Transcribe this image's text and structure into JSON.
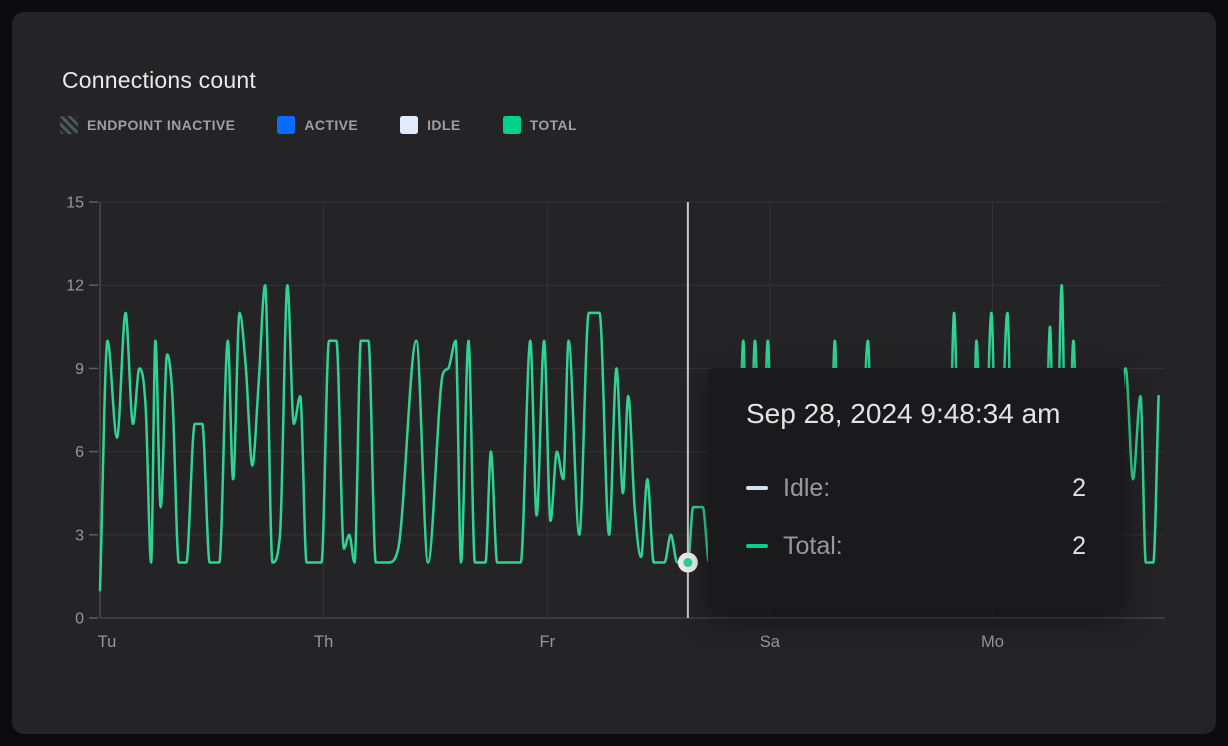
{
  "card": {
    "title": "Connections count"
  },
  "legend": {
    "items": [
      {
        "label": "ENDPOINT INACTIVE",
        "swatch": "hatch",
        "hatch_colors": [
          "#4f5c56",
          "#24292b"
        ]
      },
      {
        "label": "ACTIVE",
        "swatch": "#0a6cff"
      },
      {
        "label": "IDLE",
        "swatch": "#e0ebfb"
      },
      {
        "label": "TOTAL",
        "swatch": "#00d389"
      }
    ]
  },
  "tooltip": {
    "title": "Sep 28, 2024 9:48:34 am",
    "rows": [
      {
        "label": "Idle:",
        "value": "2",
        "color": "#cfe0f6"
      },
      {
        "label": "Total:",
        "value": "2",
        "color": "#00d389"
      }
    ]
  },
  "colors": {
    "page_bg": "#0b0b0d",
    "card_bg": "#242427",
    "grid": "#343438",
    "y_axis": "#4a4a4e",
    "x_axis": "#424246",
    "tick": "#5e5e62",
    "tick_label": "#98989b",
    "line": "#2fd492",
    "cursor_line": "#c9c9cb",
    "marker_ring": "#ededef",
    "marker_dot": "#2fd492",
    "tooltip_bg": "#1a1a1c"
  },
  "chart_data": {
    "type": "line",
    "title": "Connections count",
    "xlabel": "",
    "ylabel": "",
    "ylim": [
      0,
      15
    ],
    "yticks": [
      0,
      3,
      6,
      9,
      12,
      15
    ],
    "xticklabels": [
      "Tu",
      "Th",
      "Fr",
      "Sa",
      "Mo"
    ],
    "xtick_pct": [
      0,
      21.0,
      42.0,
      62.9,
      83.8
    ],
    "grid": true,
    "legend_position": "top",
    "series": [
      {
        "name": "Total",
        "color": "#2fd492",
        "points_pct_value": [
          [
            0,
            1
          ],
          [
            0.7,
            10
          ],
          [
            1.6,
            6.5
          ],
          [
            2.4,
            11
          ],
          [
            3.1,
            7
          ],
          [
            3.7,
            9
          ],
          [
            4.3,
            7.5
          ],
          [
            4.8,
            2
          ],
          [
            5.2,
            10
          ],
          [
            5.7,
            4
          ],
          [
            6.3,
            9.5
          ],
          [
            6.8,
            8
          ],
          [
            7.4,
            2
          ],
          [
            8.1,
            2
          ],
          [
            8.9,
            7
          ],
          [
            9.6,
            7
          ],
          [
            10.3,
            2
          ],
          [
            11.2,
            2
          ],
          [
            12,
            10
          ],
          [
            12.5,
            5
          ],
          [
            13.1,
            11
          ],
          [
            13.7,
            9
          ],
          [
            14.3,
            5.5
          ],
          [
            14.9,
            8.5
          ],
          [
            15.5,
            12
          ],
          [
            16.2,
            2
          ],
          [
            16.9,
            3
          ],
          [
            17.6,
            12
          ],
          [
            18.2,
            7
          ],
          [
            18.8,
            8
          ],
          [
            19.4,
            2
          ],
          [
            20.2,
            2
          ],
          [
            20.8,
            2
          ],
          [
            21.5,
            10
          ],
          [
            22.2,
            10
          ],
          [
            22.9,
            2.5
          ],
          [
            23.4,
            3
          ],
          [
            23.9,
            2
          ],
          [
            24.5,
            10
          ],
          [
            25.2,
            10
          ],
          [
            25.9,
            2
          ],
          [
            27.1,
            2
          ],
          [
            28,
            2.5
          ],
          [
            29.7,
            10
          ],
          [
            30.8,
            2
          ],
          [
            32.2,
            8.8
          ],
          [
            32.7,
            9
          ],
          [
            33.4,
            10
          ],
          [
            33.9,
            2
          ],
          [
            34.6,
            10
          ],
          [
            35.2,
            2
          ],
          [
            36.2,
            2
          ],
          [
            36.7,
            6
          ],
          [
            37.3,
            2
          ],
          [
            38.5,
            2
          ],
          [
            39.5,
            2
          ],
          [
            40.4,
            10
          ],
          [
            41,
            3.7
          ],
          [
            41.7,
            10
          ],
          [
            42.3,
            3.5
          ],
          [
            42.9,
            6
          ],
          [
            43.5,
            5
          ],
          [
            44,
            10
          ],
          [
            45,
            3
          ],
          [
            45.9,
            11
          ],
          [
            46.9,
            11
          ],
          [
            47.8,
            3
          ],
          [
            48.5,
            9
          ],
          [
            49.1,
            4.5
          ],
          [
            49.6,
            8
          ],
          [
            50.2,
            4
          ],
          [
            50.8,
            2.2
          ],
          [
            51.4,
            5
          ],
          [
            52,
            2
          ],
          [
            53,
            2
          ],
          [
            53.6,
            3
          ],
          [
            54.2,
            2
          ],
          [
            55.2,
            2
          ],
          [
            55.7,
            4
          ],
          [
            56.6,
            4
          ],
          [
            57.2,
            2
          ],
          [
            58.1,
            2
          ],
          [
            59.8,
            2
          ],
          [
            60.4,
            10
          ],
          [
            60.9,
            2
          ],
          [
            61.5,
            10
          ],
          [
            62.1,
            2
          ],
          [
            62.7,
            10
          ],
          [
            63.3,
            2
          ],
          [
            65,
            2
          ],
          [
            66.8,
            2
          ],
          [
            68.4,
            2
          ],
          [
            69,
            10
          ],
          [
            69.5,
            2
          ],
          [
            71.2,
            2
          ],
          [
            72.1,
            10
          ],
          [
            72.7,
            2
          ],
          [
            74.3,
            2
          ],
          [
            76.2,
            2
          ],
          [
            78,
            2
          ],
          [
            79.6,
            2
          ],
          [
            80.2,
            11
          ],
          [
            80.8,
            2
          ],
          [
            81.8,
            2
          ],
          [
            82.3,
            10
          ],
          [
            82.9,
            2
          ],
          [
            83.7,
            11
          ],
          [
            84.3,
            2
          ],
          [
            85.2,
            11
          ],
          [
            85.8,
            2
          ],
          [
            87.4,
            2
          ],
          [
            88.6,
            2
          ],
          [
            89.2,
            10.5
          ],
          [
            89.7,
            2
          ],
          [
            90.3,
            12
          ],
          [
            90.8,
            2
          ],
          [
            91.4,
            10
          ],
          [
            92,
            2
          ],
          [
            93.5,
            2
          ],
          [
            94.6,
            2
          ],
          [
            95.5,
            5
          ],
          [
            96.3,
            9
          ],
          [
            97,
            5
          ],
          [
            97.7,
            8
          ],
          [
            98.2,
            2
          ],
          [
            98.9,
            2
          ],
          [
            99.4,
            8
          ]
        ]
      }
    ],
    "cursor": {
      "x_pct": 55.2,
      "value": 2,
      "timestamp": "Sep 28, 2024 9:48:34 am",
      "idle": 2,
      "total": 2
    }
  }
}
